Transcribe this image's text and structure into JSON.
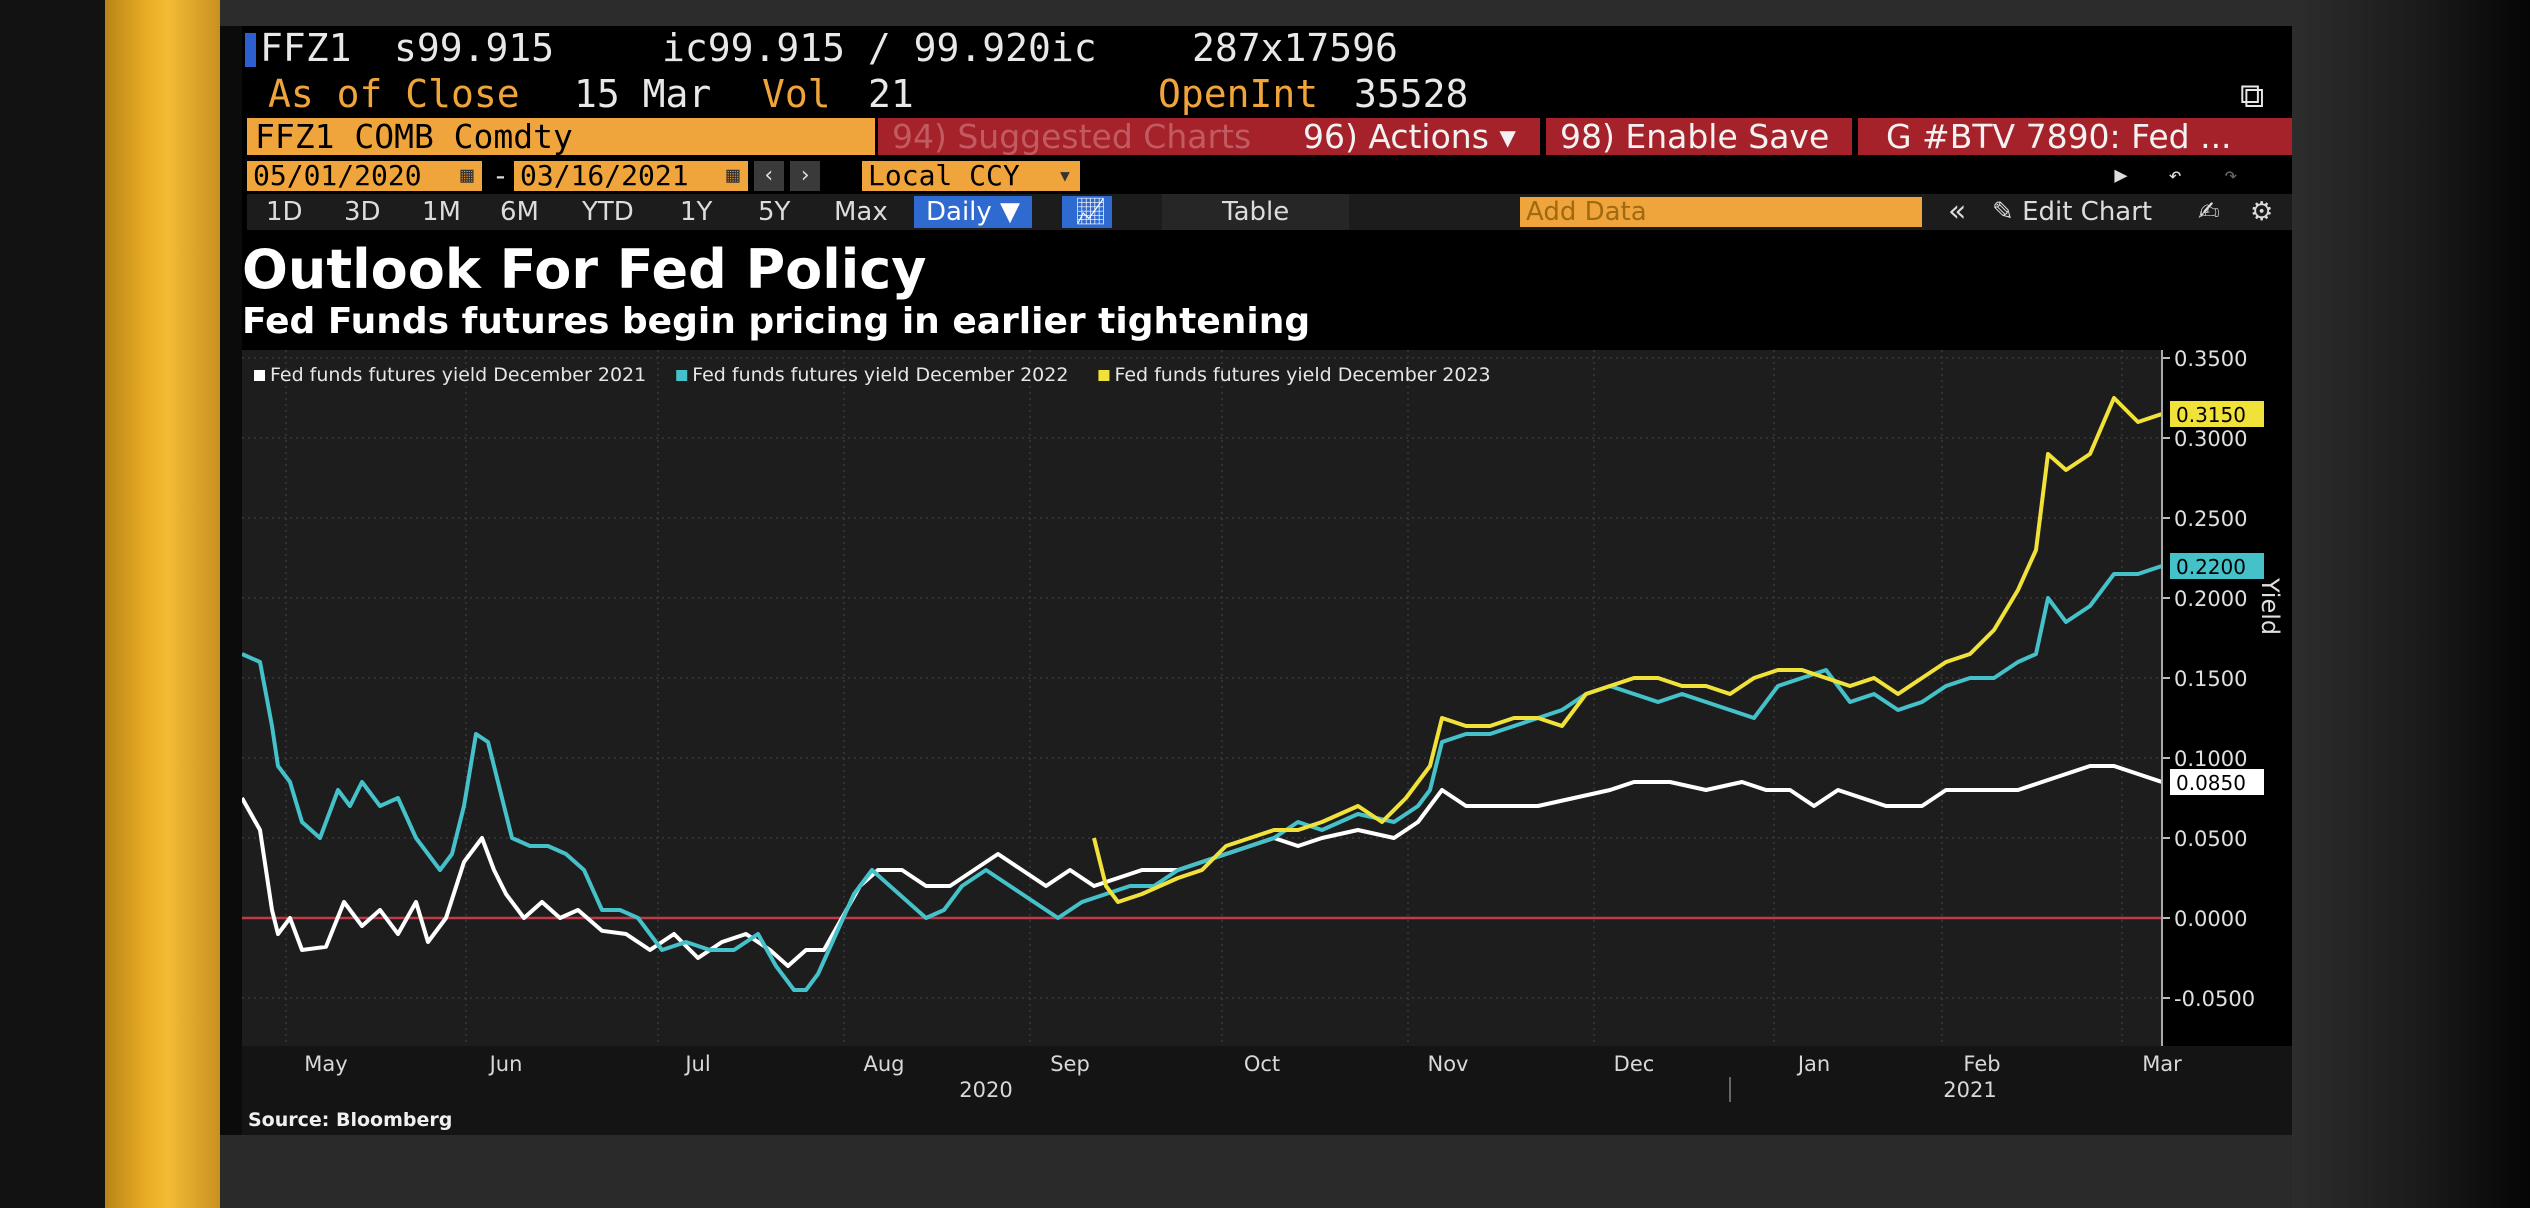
{
  "terminal": {
    "ticker": "FFZ1",
    "settle": "s99.915",
    "bid_ask": "ic99.915 / 99.920ic",
    "size": "287x17596",
    "asof_label": "As of Close",
    "asof_date": "15 Mar",
    "vol_label": "Vol",
    "vol_value": "21",
    "openint_label": "OpenInt",
    "openint_value": "35528",
    "security": "FFZ1 COMB Comdty",
    "suggested_charts": "94) Suggested Charts",
    "actions": "96) Actions ▾",
    "enable_save": "98) Enable Save",
    "btv": "G #BTV 7890: Fed ...",
    "start_date": "05/01/2020",
    "end_date": "03/16/2021",
    "currency": "Local CCY",
    "periods": [
      "1D",
      "3D",
      "1M",
      "6M",
      "YTD",
      "1Y",
      "5Y",
      "Max"
    ],
    "frequency": "Daily ▼",
    "table_label": "Table",
    "add_data_placeholder": "Add Data",
    "edit_chart": "Edit Chart"
  },
  "chart_data": {
    "type": "line",
    "title": "Outlook For Fed Policy",
    "subtitle": "Fed Funds futures begin pricing in earlier tightening",
    "ylabel": "Yield",
    "ylim": [
      -0.08,
      0.355
    ],
    "yticks": [
      0.35,
      0.3,
      0.25,
      0.2,
      0.15,
      0.1,
      0.05,
      0.0,
      -0.05
    ],
    "ytick_labels": [
      "0.3500",
      "0.3000",
      "0.2500",
      "0.2000",
      "0.1500",
      "0.1000",
      "0.0500",
      "0.0000",
      "-0.0500"
    ],
    "x_range": [
      0,
      320
    ],
    "months": [
      {
        "label": "May",
        "x": 14
      },
      {
        "label": "Jun",
        "x": 44
      },
      {
        "label": "Jul",
        "x": 76
      },
      {
        "label": "Aug",
        "x": 107
      },
      {
        "label": "Sep",
        "x": 138
      },
      {
        "label": "Oct",
        "x": 170
      },
      {
        "label": "Nov",
        "x": 201
      },
      {
        "label": "Dec",
        "x": 232
      },
      {
        "label": "Jan",
        "x": 262
      },
      {
        "label": "Feb",
        "x": 290
      },
      {
        "label": "Mar",
        "x": 320
      }
    ],
    "years": [
      {
        "label": "2020",
        "x": 124
      },
      {
        "label": "2021",
        "x": 288
      }
    ],
    "year_divider_x": 248,
    "source": "Source: Bloomberg",
    "series": [
      {
        "name": "Fed funds futures yield December 2021",
        "color": "#ffffff",
        "last_label": "0.0850",
        "points": [
          [
            0,
            0.075
          ],
          [
            3,
            0.055
          ],
          [
            5,
            0.005
          ],
          [
            6,
            -0.01
          ],
          [
            8,
            0.0
          ],
          [
            10,
            -0.02
          ],
          [
            14,
            -0.018
          ],
          [
            17,
            0.01
          ],
          [
            20,
            -0.005
          ],
          [
            23,
            0.005
          ],
          [
            26,
            -0.01
          ],
          [
            29,
            0.01
          ],
          [
            31,
            -0.015
          ],
          [
            34,
            0.0
          ],
          [
            37,
            0.035
          ],
          [
            40,
            0.05
          ],
          [
            42,
            0.03
          ],
          [
            44,
            0.015
          ],
          [
            47,
            0.0
          ],
          [
            50,
            0.01
          ],
          [
            53,
            0.0
          ],
          [
            56,
            0.005
          ],
          [
            60,
            -0.008
          ],
          [
            64,
            -0.01
          ],
          [
            68,
            -0.02
          ],
          [
            72,
            -0.01
          ],
          [
            76,
            -0.025
          ],
          [
            80,
            -0.015
          ],
          [
            84,
            -0.01
          ],
          [
            88,
            -0.02
          ],
          [
            91,
            -0.03
          ],
          [
            94,
            -0.02
          ],
          [
            97,
            -0.02
          ],
          [
            100,
            0.0
          ],
          [
            103,
            0.02
          ],
          [
            106,
            0.03
          ],
          [
            110,
            0.03
          ],
          [
            114,
            0.02
          ],
          [
            118,
            0.02
          ],
          [
            122,
            0.03
          ],
          [
            126,
            0.04
          ],
          [
            130,
            0.03
          ],
          [
            134,
            0.02
          ],
          [
            138,
            0.03
          ],
          [
            142,
            0.02
          ],
          [
            146,
            0.025
          ],
          [
            150,
            0.03
          ],
          [
            156,
            0.03
          ],
          [
            160,
            0.035
          ],
          [
            164,
            0.04
          ],
          [
            168,
            0.045
          ],
          [
            172,
            0.05
          ],
          [
            176,
            0.045
          ],
          [
            180,
            0.05
          ],
          [
            186,
            0.055
          ],
          [
            192,
            0.05
          ],
          [
            196,
            0.06
          ],
          [
            198,
            0.07
          ],
          [
            200,
            0.08
          ],
          [
            204,
            0.07
          ],
          [
            210,
            0.07
          ],
          [
            216,
            0.07
          ],
          [
            222,
            0.075
          ],
          [
            228,
            0.08
          ],
          [
            232,
            0.085
          ],
          [
            238,
            0.085
          ],
          [
            244,
            0.08
          ],
          [
            250,
            0.085
          ],
          [
            254,
            0.08
          ],
          [
            258,
            0.08
          ],
          [
            262,
            0.07
          ],
          [
            266,
            0.08
          ],
          [
            270,
            0.075
          ],
          [
            274,
            0.07
          ],
          [
            280,
            0.07
          ],
          [
            284,
            0.08
          ],
          [
            288,
            0.08
          ],
          [
            292,
            0.08
          ],
          [
            296,
            0.08
          ],
          [
            300,
            0.085
          ],
          [
            304,
            0.09
          ],
          [
            308,
            0.095
          ],
          [
            312,
            0.095
          ],
          [
            316,
            0.09
          ],
          [
            320,
            0.085
          ]
        ]
      },
      {
        "name": "Fed funds futures yield December 2022",
        "color": "#45c1c9",
        "last_label": "0.2200",
        "points": [
          [
            0,
            0.165
          ],
          [
            3,
            0.16
          ],
          [
            5,
            0.12
          ],
          [
            6,
            0.095
          ],
          [
            8,
            0.085
          ],
          [
            10,
            0.06
          ],
          [
            13,
            0.05
          ],
          [
            16,
            0.08
          ],
          [
            18,
            0.07
          ],
          [
            20,
            0.085
          ],
          [
            23,
            0.07
          ],
          [
            26,
            0.075
          ],
          [
            29,
            0.05
          ],
          [
            31,
            0.04
          ],
          [
            33,
            0.03
          ],
          [
            35,
            0.04
          ],
          [
            37,
            0.07
          ],
          [
            39,
            0.115
          ],
          [
            41,
            0.11
          ],
          [
            43,
            0.08
          ],
          [
            45,
            0.05
          ],
          [
            48,
            0.045
          ],
          [
            51,
            0.045
          ],
          [
            54,
            0.04
          ],
          [
            57,
            0.03
          ],
          [
            60,
            0.005
          ],
          [
            63,
            0.005
          ],
          [
            66,
            0.0
          ],
          [
            70,
            -0.02
          ],
          [
            74,
            -0.015
          ],
          [
            78,
            -0.02
          ],
          [
            82,
            -0.02
          ],
          [
            86,
            -0.01
          ],
          [
            89,
            -0.03
          ],
          [
            92,
            -0.045
          ],
          [
            94,
            -0.045
          ],
          [
            96,
            -0.035
          ],
          [
            99,
            -0.01
          ],
          [
            102,
            0.015
          ],
          [
            105,
            0.03
          ],
          [
            108,
            0.02
          ],
          [
            111,
            0.01
          ],
          [
            114,
            0.0
          ],
          [
            117,
            0.005
          ],
          [
            120,
            0.02
          ],
          [
            124,
            0.03
          ],
          [
            128,
            0.02
          ],
          [
            132,
            0.01
          ],
          [
            136,
            0.0
          ],
          [
            140,
            0.01
          ],
          [
            144,
            0.015
          ],
          [
            148,
            0.02
          ],
          [
            152,
            0.02
          ],
          [
            156,
            0.03
          ],
          [
            160,
            0.035
          ],
          [
            164,
            0.04
          ],
          [
            168,
            0.045
          ],
          [
            172,
            0.05
          ],
          [
            176,
            0.06
          ],
          [
            180,
            0.055
          ],
          [
            186,
            0.065
          ],
          [
            192,
            0.06
          ],
          [
            196,
            0.07
          ],
          [
            198,
            0.08
          ],
          [
            200,
            0.11
          ],
          [
            204,
            0.115
          ],
          [
            208,
            0.115
          ],
          [
            212,
            0.12
          ],
          [
            216,
            0.125
          ],
          [
            220,
            0.13
          ],
          [
            224,
            0.14
          ],
          [
            228,
            0.145
          ],
          [
            232,
            0.14
          ],
          [
            236,
            0.135
          ],
          [
            240,
            0.14
          ],
          [
            244,
            0.135
          ],
          [
            248,
            0.13
          ],
          [
            252,
            0.125
          ],
          [
            256,
            0.145
          ],
          [
            260,
            0.15
          ],
          [
            264,
            0.155
          ],
          [
            268,
            0.135
          ],
          [
            272,
            0.14
          ],
          [
            276,
            0.13
          ],
          [
            280,
            0.135
          ],
          [
            284,
            0.145
          ],
          [
            288,
            0.15
          ],
          [
            292,
            0.15
          ],
          [
            296,
            0.16
          ],
          [
            299,
            0.165
          ],
          [
            301,
            0.2
          ],
          [
            304,
            0.185
          ],
          [
            308,
            0.195
          ],
          [
            312,
            0.215
          ],
          [
            316,
            0.215
          ],
          [
            320,
            0.22
          ]
        ]
      },
      {
        "name": "Fed funds futures yield December 2023",
        "color": "#f1e23a",
        "last_label": "0.3150",
        "points": [
          [
            142,
            0.05
          ],
          [
            144,
            0.02
          ],
          [
            146,
            0.01
          ],
          [
            150,
            0.015
          ],
          [
            156,
            0.025
          ],
          [
            160,
            0.03
          ],
          [
            164,
            0.045
          ],
          [
            168,
            0.05
          ],
          [
            172,
            0.055
          ],
          [
            176,
            0.055
          ],
          [
            180,
            0.06
          ],
          [
            186,
            0.07
          ],
          [
            190,
            0.06
          ],
          [
            194,
            0.075
          ],
          [
            196,
            0.085
          ],
          [
            198,
            0.095
          ],
          [
            200,
            0.125
          ],
          [
            204,
            0.12
          ],
          [
            208,
            0.12
          ],
          [
            212,
            0.125
          ],
          [
            216,
            0.125
          ],
          [
            220,
            0.12
          ],
          [
            224,
            0.14
          ],
          [
            228,
            0.145
          ],
          [
            232,
            0.15
          ],
          [
            236,
            0.15
          ],
          [
            240,
            0.145
          ],
          [
            244,
            0.145
          ],
          [
            248,
            0.14
          ],
          [
            252,
            0.15
          ],
          [
            256,
            0.155
          ],
          [
            260,
            0.155
          ],
          [
            264,
            0.15
          ],
          [
            268,
            0.145
          ],
          [
            272,
            0.15
          ],
          [
            276,
            0.14
          ],
          [
            280,
            0.15
          ],
          [
            284,
            0.16
          ],
          [
            288,
            0.165
          ],
          [
            292,
            0.18
          ],
          [
            296,
            0.205
          ],
          [
            299,
            0.23
          ],
          [
            301,
            0.29
          ],
          [
            304,
            0.28
          ],
          [
            308,
            0.29
          ],
          [
            312,
            0.325
          ],
          [
            316,
            0.31
          ],
          [
            320,
            0.315
          ]
        ]
      }
    ],
    "zero_line_color": "#c23a4a"
  }
}
